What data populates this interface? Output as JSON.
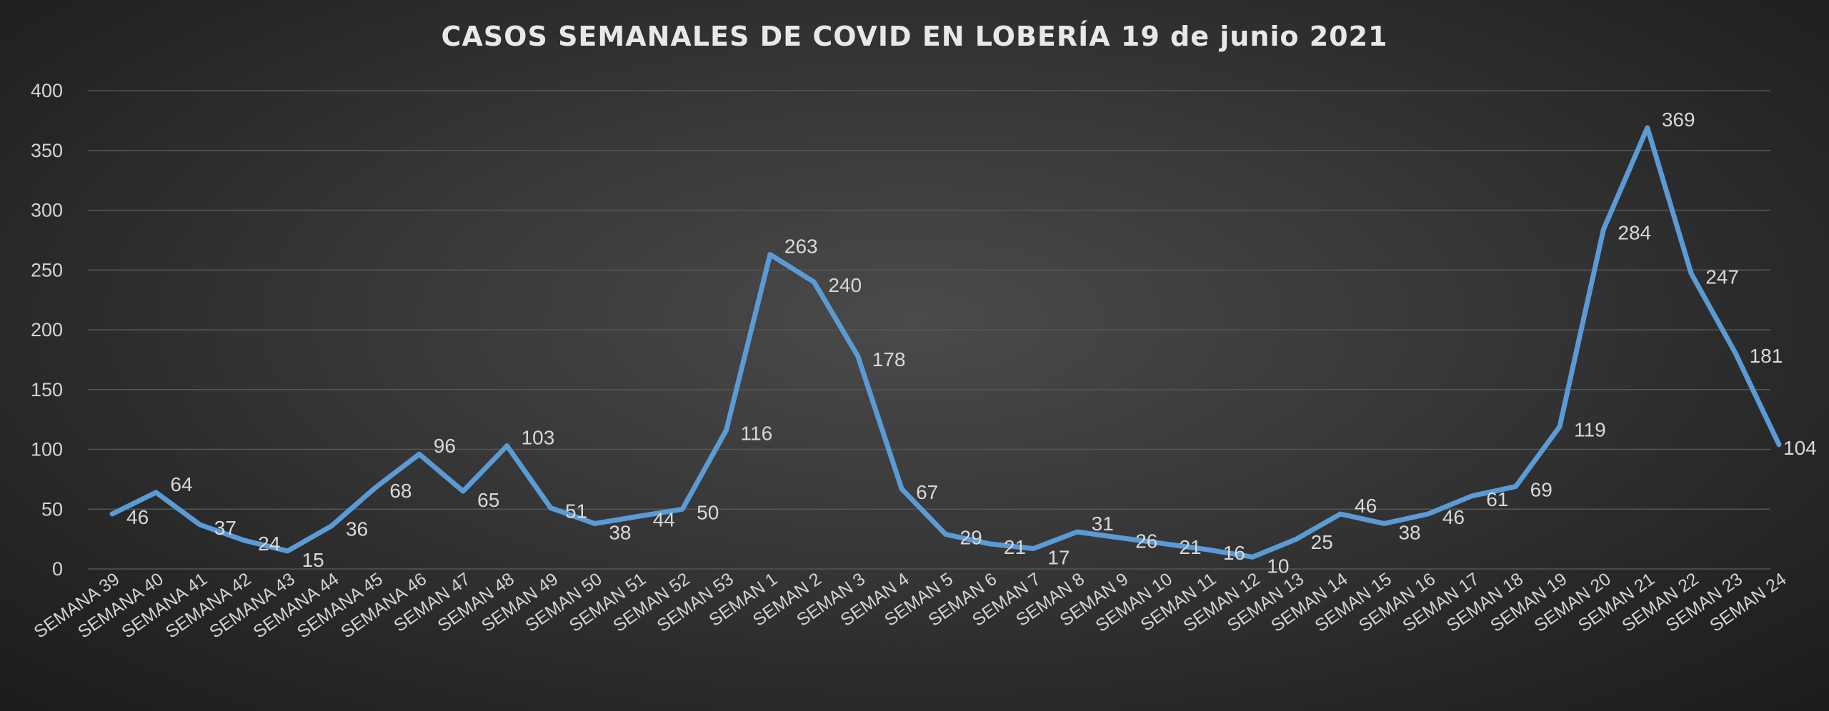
{
  "chart_data": {
    "type": "line",
    "title": "CASOS SEMANALES DE COVID  EN LOBERÍA 19 de junio 2021",
    "xlabel": "",
    "ylabel": "",
    "ylim": [
      0,
      400
    ],
    "yticks": [
      0,
      50,
      100,
      150,
      200,
      250,
      300,
      350,
      400
    ],
    "grid": true,
    "legend": "none",
    "line_color": "#5b9bd5",
    "categories": [
      "SEMANA 39",
      "SEMANA 40",
      "SEMANA 41",
      "SEMANA 42",
      "SEMANA 43",
      "SEMANA 44",
      "SEMANA 45",
      "SEMANA 46",
      "SEMAN 47",
      "SEMAN 48",
      "SEMAN 49",
      "SEMAN 50",
      "SEMAN 51",
      "SEMAN 52",
      "SEMAN 53",
      "SEMAN  1",
      "SEMAN 2",
      "SEMAN 3",
      "SEMAN 4",
      "SEMAN 5",
      "SEMAN 6",
      "SEMAN 7",
      "SEMAN 8",
      "SEMAN 9",
      "SEMAN 10",
      "SEMAN 11",
      "SEMAN 12",
      "SEMAN 13",
      "SEMAN 14",
      "SEMAN 15",
      "SEMAN 16",
      "SEMAN 17",
      "SEMAN 18",
      "SEMAN 19",
      "SEMAN 20",
      "SEMAN 21",
      "SEMAN 22",
      "SEMAN 23",
      "SEMAN 24"
    ],
    "values": [
      46,
      64,
      37,
      24,
      15,
      36,
      68,
      96,
      65,
      103,
      51,
      38,
      44,
      50,
      116,
      263,
      240,
      178,
      67,
      29,
      21,
      17,
      31,
      26,
      21,
      16,
      10,
      25,
      46,
      38,
      46,
      61,
      69,
      119,
      284,
      369,
      247,
      181,
      104
    ]
  }
}
